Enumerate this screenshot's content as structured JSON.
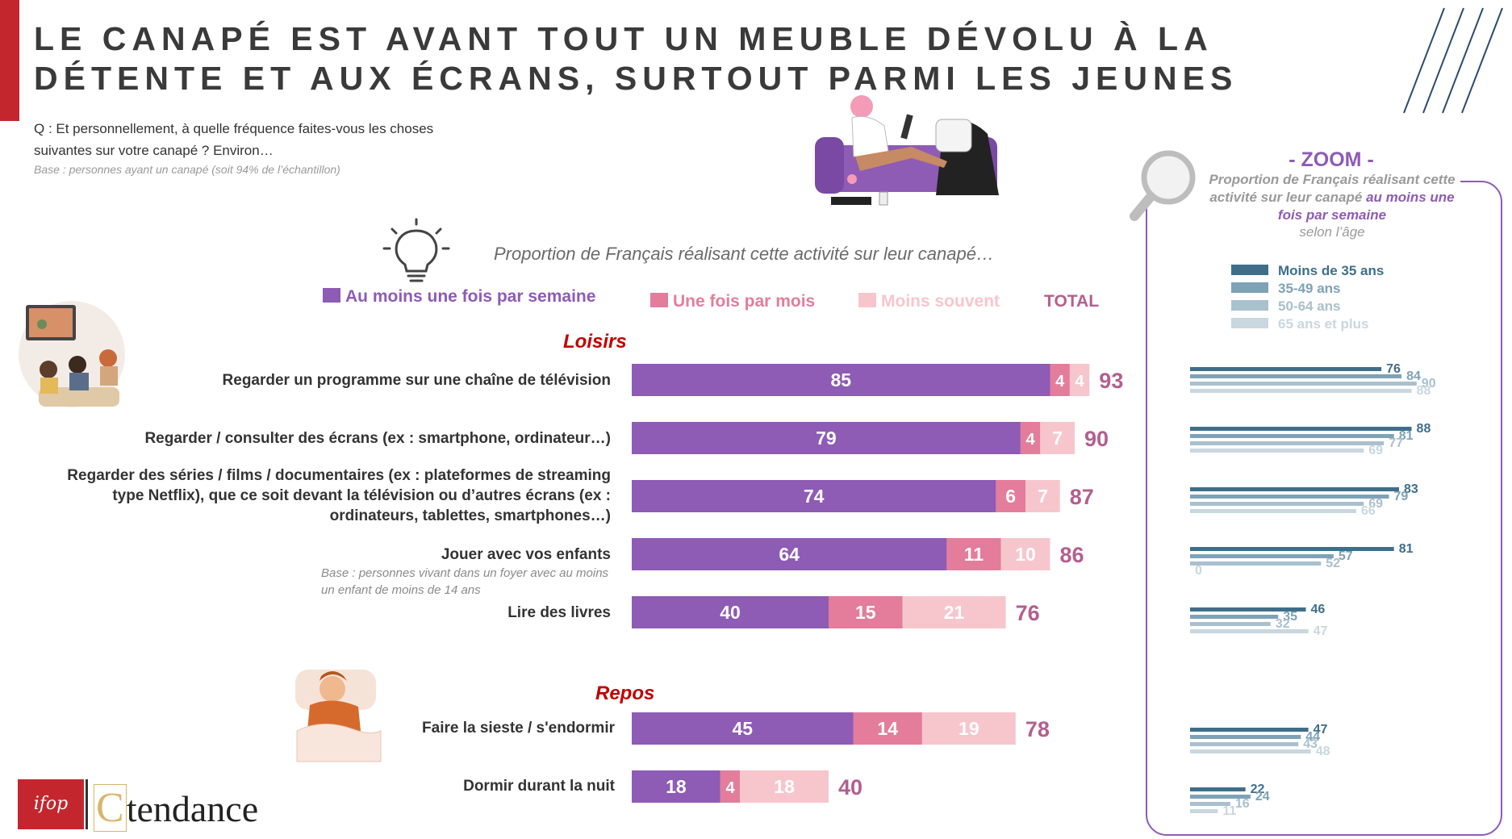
{
  "header": {
    "title": "LE CANAPÉ EST AVANT TOUT UN MEUBLE DÉVOLU À LA DÉTENTE ET AUX ÉCRANS, SURTOUT PARMI LES JEUNES",
    "question": "Q : Et personnellement, à quelle fréquence faites-vous les choses suivantes sur votre canapé ? Environ…",
    "base": "Base : personnes ayant un canapé (soit 94% de l’échantillon)"
  },
  "proportion_label": "Proportion de Français réalisant cette activité sur leur canapé…",
  "legend": {
    "weekly": "Au moins une fois par semaine",
    "monthly": "Une fois par mois",
    "less": "Moins souvent",
    "total": "TOTAL"
  },
  "colors": {
    "weekly": "#8e5bb5",
    "monthly": "#e37d9b",
    "less": "#f7c6cd",
    "total": "#b35f8f",
    "section": "#c00000",
    "zoom_border": "#8e5bb5",
    "age_colors": [
      "#3f6e8a",
      "#7ea2b6",
      "#a9c0ce",
      "#c9d7df"
    ]
  },
  "sections": {
    "loisirs": "Loisirs",
    "repos": "Repos"
  },
  "row_labels": [
    "Regarder un programme sur une chaîne de télévision",
    "Regarder / consulter des écrans (ex : smartphone, ordinateur…)",
    "Regarder des séries / films / documentaires (ex : plateformes de streaming type Netflix), que ce soit devant la télévision ou d’autres écrans (ex : ordinateurs, tablettes, smartphones…)",
    "Jouer avec vos enfants",
    "Lire des livres",
    "Faire la sieste / s'endormir",
    "Dormir durant la nuit"
  ],
  "row_note": "Base : personnes vivant dans un foyer avec au moins un enfant de moins de 14 ans",
  "zoom": {
    "title": "- ZOOM -",
    "desc_plain": "Proportion de Français réalisant cette activité sur leur canapé",
    "desc_highlight": "au moins une fois par semaine",
    "subtitle": "selon l’âge",
    "age_groups": [
      "Moins de 35 ans",
      "35-49 ans",
      "50-64 ans",
      "65 ans et plus"
    ]
  },
  "logos": {
    "ifop": "ifop",
    "ct_c": "C",
    "ct_rest": "tendance"
  },
  "chart_data": [
    {
      "type": "bar",
      "orientation": "horizontal",
      "stacked": true,
      "categories": [
        "Regarder un programme sur une chaîne de télévision",
        "Regarder / consulter des écrans (ex : smartphone, ordinateur…)",
        "Regarder des séries / films / documentaires (ex : plateformes de streaming type Netflix), que ce soit devant la télévision ou d’autres écrans (ex : ordinateurs, tablettes, smartphones…)",
        "Jouer avec vos enfants",
        "Lire des livres",
        "Faire la sieste / s'endormir",
        "Dormir durant la nuit"
      ],
      "series": [
        {
          "name": "Au moins une fois par semaine",
          "values": [
            85,
            79,
            74,
            64,
            40,
            45,
            18
          ]
        },
        {
          "name": "Une fois par mois",
          "values": [
            4,
            4,
            6,
            11,
            15,
            14,
            4
          ]
        },
        {
          "name": "Moins souvent",
          "values": [
            4,
            7,
            7,
            10,
            21,
            19,
            18
          ]
        }
      ],
      "totals": [
        93,
        90,
        87,
        86,
        76,
        78,
        40
      ],
      "title": "Proportion de Français réalisant cette activité sur leur canapé…",
      "xlim": [
        0,
        100
      ],
      "legend": "top"
    },
    {
      "type": "bar",
      "orientation": "horizontal",
      "stacked": false,
      "categories": [
        "Regarder un programme sur une chaîne de télévision",
        "Regarder / consulter des écrans (ex : smartphone, ordinateur…)",
        "Regarder des séries / films / documentaires (ex : plateformes de streaming type Netflix), que ce soit devant la télévision ou d’autres écrans (ex : ordinateurs, tablettes, smartphones…)",
        "Jouer avec vos enfants",
        "Lire des livres",
        "Faire la sieste / s'endormir",
        "Dormir durant la nuit"
      ],
      "series": [
        {
          "name": "Moins de 35 ans",
          "values": [
            76,
            88,
            83,
            81,
            46,
            47,
            22
          ]
        },
        {
          "name": "35-49 ans",
          "values": [
            84,
            81,
            79,
            57,
            35,
            44,
            24
          ]
        },
        {
          "name": "50-64 ans",
          "values": [
            90,
            77,
            69,
            52,
            32,
            43,
            16
          ]
        },
        {
          "name": "65 ans et plus",
          "values": [
            88,
            69,
            66,
            0,
            47,
            48,
            11
          ]
        }
      ],
      "title": "- ZOOM -",
      "xlim": [
        0,
        100
      ],
      "legend": "top"
    }
  ]
}
